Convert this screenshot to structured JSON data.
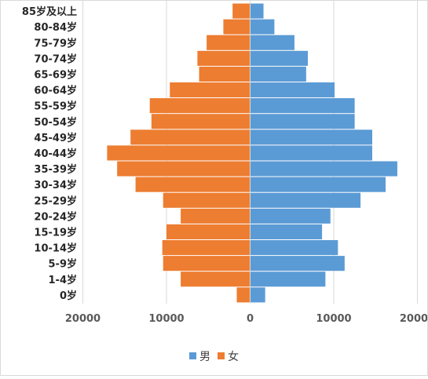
{
  "chart_data": {
    "type": "bar",
    "orientation": "horizontal",
    "layout": "population-pyramid",
    "categories": [
      "85岁及以上",
      "80-84岁",
      "75-79岁",
      "70-74岁",
      "65-69岁",
      "60-64岁",
      "55-59岁",
      "50-54岁",
      "45-49岁",
      "40-44岁",
      "35-39岁",
      "30-34岁",
      "25-29岁",
      "20-24岁",
      "15-19岁",
      "10-14岁",
      "5-9岁",
      "1-4岁",
      "0岁"
    ],
    "series": [
      {
        "name": "男",
        "color": "#5b9bd5",
        "side": "right",
        "values": [
          1600,
          2900,
          5300,
          6900,
          6700,
          10100,
          12500,
          12500,
          14600,
          14600,
          17600,
          16200,
          13200,
          9600,
          8600,
          10500,
          11300,
          9000,
          1800
        ]
      },
      {
        "name": "女",
        "color": "#ed7d31",
        "side": "left",
        "values": [
          2100,
          3200,
          5200,
          6300,
          6100,
          9600,
          12000,
          11800,
          14300,
          17100,
          15900,
          13700,
          10400,
          8300,
          10000,
          10500,
          10400,
          8300,
          1600
        ]
      }
    ],
    "x_ticks": [
      "20000",
      "10000",
      "0",
      "10000",
      "20000"
    ],
    "xlim": [
      -20000,
      20000
    ],
    "title": "",
    "xlabel": "",
    "ylabel": "",
    "grid": "vertical",
    "legend_position": "bottom"
  },
  "legend": {
    "items": [
      {
        "label": "男",
        "color": "#5b9bd5"
      },
      {
        "label": "女",
        "color": "#ed7d31"
      }
    ]
  }
}
